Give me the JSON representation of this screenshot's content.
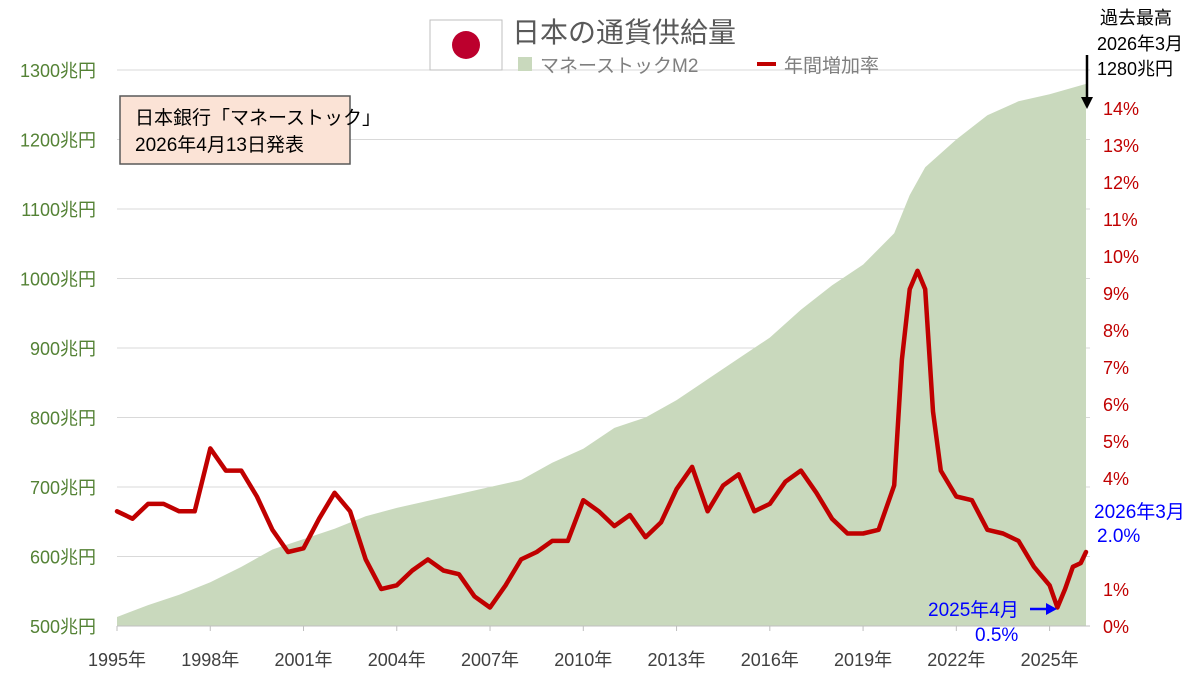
{
  "title": "日本の通貨供給量",
  "source_note": {
    "line1": "日本銀行「マネーストック」",
    "line2": "2026年4月13日発表"
  },
  "colors": {
    "area": "#c9d9bd",
    "line": "#c00000",
    "left_axis": "#548235",
    "right_axis": "#c00000",
    "note_bg": "#fbe3d6",
    "annotation_blue": "#0000ff",
    "flag_red": "#bc002d"
  },
  "icons": {
    "flag": "japan-flag-icon"
  },
  "annotations": {
    "record": {
      "line1": "過去最高",
      "line2": "2026年3月",
      "line3": "1280兆円"
    },
    "latest": {
      "line1": "2026年3月",
      "line2": "2.0%"
    },
    "low": {
      "line1": "2025年4月",
      "line2": "0.5%"
    }
  },
  "chart_data": {
    "type": "area+line",
    "title": "日本の通貨供給量",
    "legend_position": "top",
    "grid": true,
    "series": [
      {
        "name": "マネーストックM2",
        "type": "area",
        "axis": "left",
        "x": [
          1995,
          1996,
          1997,
          1998,
          1999,
          2000,
          2001,
          2002,
          2003,
          2004,
          2005,
          2006,
          2007,
          2008,
          2009,
          2010,
          2011,
          2012,
          2013,
          2014,
          2015,
          2016,
          2017,
          2018,
          2019,
          2020,
          2020.5,
          2021,
          2022,
          2023,
          2024,
          2025,
          2026.17
        ],
        "values": [
          513,
          530,
          545,
          563,
          585,
          610,
          625,
          640,
          658,
          670,
          680,
          690,
          700,
          710,
          735,
          755,
          785,
          800,
          825,
          855,
          885,
          915,
          955,
          990,
          1020,
          1065,
          1120,
          1160,
          1200,
          1235,
          1255,
          1265,
          1280
        ]
      },
      {
        "name": "年間増加率",
        "type": "line",
        "axis": "right",
        "x": [
          1995,
          1995.5,
          1996,
          1996.5,
          1997,
          1997.5,
          1998,
          1998.5,
          1999,
          1999.5,
          2000,
          2000.5,
          2001,
          2001.5,
          2002,
          2002.5,
          2003,
          2003.5,
          2004,
          2004.5,
          2005,
          2005.5,
          2006,
          2006.5,
          2007,
          2007.5,
          2008,
          2008.5,
          2009,
          2009.5,
          2010,
          2010.5,
          2011,
          2011.5,
          2012,
          2012.5,
          2013,
          2013.5,
          2014,
          2014.5,
          2015,
          2015.5,
          2016,
          2016.5,
          2017,
          2017.5,
          2018,
          2018.5,
          2019,
          2019.5,
          2020,
          2020.25,
          2020.5,
          2020.75,
          2021,
          2021.25,
          2021.5,
          2022,
          2022.5,
          2023,
          2023.5,
          2024,
          2024.5,
          2025,
          2025.25,
          2025.5,
          2025.75,
          2026,
          2026.17
        ],
        "values": [
          3.1,
          2.9,
          3.3,
          3.3,
          3.1,
          3.1,
          4.8,
          4.2,
          4.2,
          3.5,
          2.6,
          2.0,
          2.1,
          2.9,
          3.6,
          3.1,
          1.8,
          1.0,
          1.1,
          1.5,
          1.8,
          1.5,
          1.4,
          0.8,
          0.5,
          1.1,
          1.8,
          2.0,
          2.3,
          2.3,
          3.4,
          3.1,
          2.7,
          3.0,
          2.4,
          2.8,
          3.7,
          4.3,
          3.1,
          3.8,
          4.1,
          3.1,
          3.3,
          3.9,
          4.2,
          3.6,
          2.9,
          2.5,
          2.5,
          2.6,
          3.8,
          7.2,
          9.1,
          9.6,
          9.1,
          5.8,
          4.2,
          3.5,
          3.4,
          2.6,
          2.5,
          2.3,
          1.6,
          1.1,
          0.5,
          1.0,
          1.6,
          1.7,
          2.0
        ]
      }
    ],
    "x_axis": {
      "ticks": [
        "1995年",
        "1998年",
        "2001年",
        "2004年",
        "2007年",
        "2010年",
        "2013年",
        "2016年",
        "2019年",
        "2022年",
        "2025年"
      ],
      "range": [
        1995,
        2026.3
      ]
    },
    "y_left": {
      "ticks": [
        "500兆円",
        "600兆円",
        "700兆円",
        "800兆円",
        "900兆円",
        "1000兆円",
        "1100兆円",
        "1200兆円",
        "1300兆円"
      ],
      "range": [
        500,
        1300
      ]
    },
    "y_right": {
      "ticks": [
        "0%",
        "1%",
        "",
        "",
        "4%",
        "5%",
        "6%",
        "7%",
        "8%",
        "9%",
        "10%",
        "11%",
        "12%",
        "13%",
        "14%"
      ],
      "range": [
        0,
        14
      ]
    }
  }
}
